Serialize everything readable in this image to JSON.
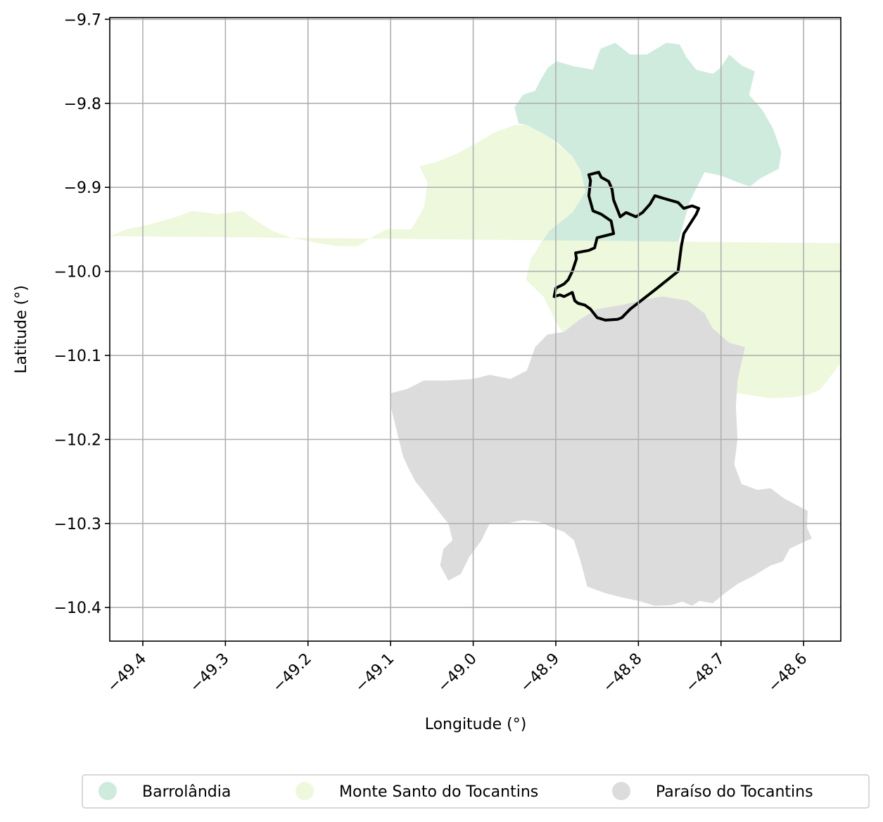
{
  "chart_data": {
    "type": "map",
    "xlabel": "Longitude (°)",
    "ylabel": "Latitude (°)",
    "xlim": [
      -49.44,
      -48.555
    ],
    "ylim": [
      -10.44,
      -9.698
    ],
    "x_ticks": [
      {
        "value": -49.4,
        "label": "−49.4"
      },
      {
        "value": -49.3,
        "label": "−49.3"
      },
      {
        "value": -49.2,
        "label": "−49.2"
      },
      {
        "value": -49.1,
        "label": "−49.1"
      },
      {
        "value": -49.0,
        "label": "−49.0"
      },
      {
        "value": -48.9,
        "label": "−48.9"
      },
      {
        "value": -48.8,
        "label": "−48.8"
      },
      {
        "value": -48.7,
        "label": "−48.7"
      },
      {
        "value": -48.6,
        "label": "−48.6"
      }
    ],
    "y_ticks": [
      {
        "value": -9.7,
        "label": "−9.7"
      },
      {
        "value": -9.8,
        "label": "−9.8"
      },
      {
        "value": -9.9,
        "label": "−9.9"
      },
      {
        "value": -10.0,
        "label": "−10.0"
      },
      {
        "value": -10.1,
        "label": "−10.1"
      },
      {
        "value": -10.2,
        "label": "−10.2"
      },
      {
        "value": -10.3,
        "label": "−10.3"
      },
      {
        "value": -10.4,
        "label": "−10.4"
      }
    ],
    "grid": true,
    "legend_position": "bottom",
    "regions": [
      {
        "name": "Barrolândia",
        "color": "#cfebdd",
        "polygon": [
          [
            -48.936,
            -10.01
          ],
          [
            -48.93,
            -9.985
          ],
          [
            -48.92,
            -9.97
          ],
          [
            -48.914,
            -9.96
          ],
          [
            -48.908,
            -9.952
          ],
          [
            -48.88,
            -9.93
          ],
          [
            -48.864,
            -9.905
          ],
          [
            -48.87,
            -9.88
          ],
          [
            -48.88,
            -9.863
          ],
          [
            -48.898,
            -9.847
          ],
          [
            -48.917,
            -9.835
          ],
          [
            -48.935,
            -9.826
          ],
          [
            -48.945,
            -9.824
          ],
          [
            -48.95,
            -9.805
          ],
          [
            -48.94,
            -9.79
          ],
          [
            -48.925,
            -9.785
          ],
          [
            -48.92,
            -9.775
          ],
          [
            -48.91,
            -9.758
          ],
          [
            -48.899,
            -9.75
          ],
          [
            -48.878,
            -9.756
          ],
          [
            -48.855,
            -9.76
          ],
          [
            -48.846,
            -9.735
          ],
          [
            -48.828,
            -9.728
          ],
          [
            -48.81,
            -9.742
          ],
          [
            -48.79,
            -9.742
          ],
          [
            -48.766,
            -9.728
          ],
          [
            -48.75,
            -9.73
          ],
          [
            -48.742,
            -9.745
          ],
          [
            -48.73,
            -9.76
          ],
          [
            -48.71,
            -9.765
          ],
          [
            -48.7,
            -9.757
          ],
          [
            -48.69,
            -9.742
          ],
          [
            -48.675,
            -9.755
          ],
          [
            -48.659,
            -9.762
          ],
          [
            -48.666,
            -9.79
          ],
          [
            -48.65,
            -9.808
          ],
          [
            -48.637,
            -9.83
          ],
          [
            -48.627,
            -9.858
          ],
          [
            -48.63,
            -9.878
          ],
          [
            -48.652,
            -9.889
          ],
          [
            -48.665,
            -9.899
          ],
          [
            -48.68,
            -9.894
          ],
          [
            -48.7,
            -9.886
          ],
          [
            -48.72,
            -9.882
          ],
          [
            -48.738,
            -9.917
          ],
          [
            -48.751,
            -9.963
          ],
          [
            -48.78,
            -10.023
          ],
          [
            -48.81,
            -10.055
          ],
          [
            -48.827,
            -10.058
          ],
          [
            -48.845,
            -10.055
          ],
          [
            -48.87,
            -10.04
          ],
          [
            -48.893,
            -10.038
          ],
          [
            -48.915,
            -10.028
          ]
        ]
      },
      {
        "name": "Monte Santo do Tocantins",
        "color": "#eef8dc",
        "polygon": [
          [
            -49.44,
            -9.958
          ],
          [
            -49.42,
            -9.95
          ],
          [
            -49.395,
            -9.945
          ],
          [
            -49.365,
            -9.937
          ],
          [
            -49.34,
            -9.928
          ],
          [
            -49.31,
            -9.932
          ],
          [
            -49.28,
            -9.928
          ],
          [
            -49.262,
            -9.94
          ],
          [
            -49.243,
            -9.952
          ],
          [
            -49.22,
            -9.96
          ],
          [
            -49.19,
            -9.966
          ],
          [
            -49.165,
            -9.97
          ],
          [
            -49.14,
            -9.97
          ],
          [
            -49.12,
            -9.958
          ],
          [
            -49.105,
            -9.95
          ],
          [
            -49.075,
            -9.95
          ],
          [
            -49.06,
            -9.925
          ],
          [
            -49.055,
            -9.895
          ],
          [
            -49.065,
            -9.875
          ],
          [
            -49.045,
            -9.87
          ],
          [
            -49.02,
            -9.86
          ],
          [
            -48.995,
            -9.847
          ],
          [
            -48.975,
            -9.835
          ],
          [
            -48.95,
            -9.826
          ],
          [
            -48.935,
            -9.826
          ],
          [
            -48.917,
            -9.835
          ],
          [
            -48.9,
            -9.847
          ],
          [
            -48.88,
            -9.863
          ],
          [
            -48.87,
            -9.88
          ],
          [
            -48.864,
            -9.905
          ],
          [
            -48.88,
            -9.93
          ],
          [
            -48.908,
            -9.952
          ],
          [
            -48.93,
            -9.985
          ],
          [
            -48.936,
            -10.01
          ],
          [
            -48.915,
            -10.03
          ],
          [
            -48.9,
            -10.06
          ],
          [
            -48.89,
            -10.075
          ],
          [
            -48.86,
            -10.1
          ],
          [
            -48.846,
            -10.115
          ],
          [
            -48.83,
            -10.13
          ],
          [
            -48.815,
            -10.128
          ],
          [
            -48.79,
            -10.118
          ],
          [
            -48.77,
            -10.12
          ],
          [
            -48.755,
            -10.128
          ],
          [
            -48.735,
            -10.132
          ],
          [
            -48.72,
            -10.138
          ],
          [
            -48.7,
            -10.14
          ],
          [
            -48.68,
            -10.145
          ],
          [
            -48.66,
            -10.148
          ],
          [
            -48.643,
            -10.151
          ],
          [
            -48.615,
            -10.15
          ],
          [
            -48.595,
            -10.147
          ],
          [
            -48.58,
            -10.141
          ],
          [
            -48.562,
            -10.118
          ],
          [
            -48.548,
            -10.098
          ],
          [
            -48.53,
            -10.085
          ],
          [
            -48.51,
            -10.073
          ],
          [
            -48.495,
            -10.06
          ],
          [
            -48.465,
            -10.045
          ],
          [
            -48.44,
            -10.035
          ],
          [
            -48.43,
            -10.02
          ],
          [
            -48.42,
            -10.0
          ],
          [
            -48.405,
            -9.988
          ],
          [
            -48.39,
            -9.972
          ],
          [
            -48.38,
            -9.968
          ]
        ]
      },
      {
        "name": "Paraíso do Tocantins",
        "color": "#dcdcdc",
        "polygon": [
          [
            -49.1,
            -10.145
          ],
          [
            -49.08,
            -10.14
          ],
          [
            -49.06,
            -10.13
          ],
          [
            -49.035,
            -10.13
          ],
          [
            -49.0,
            -10.128
          ],
          [
            -48.98,
            -10.123
          ],
          [
            -48.955,
            -10.128
          ],
          [
            -48.935,
            -10.118
          ],
          [
            -48.925,
            -10.09
          ],
          [
            -48.91,
            -10.075
          ],
          [
            -48.89,
            -10.072
          ],
          [
            -48.872,
            -10.058
          ],
          [
            -48.85,
            -10.045
          ],
          [
            -48.82,
            -10.04
          ],
          [
            -48.79,
            -10.033
          ],
          [
            -48.77,
            -10.03
          ],
          [
            -48.74,
            -10.035
          ],
          [
            -48.72,
            -10.05
          ],
          [
            -48.71,
            -10.068
          ],
          [
            -48.69,
            -10.085
          ],
          [
            -48.671,
            -10.09
          ],
          [
            -48.68,
            -10.13
          ],
          [
            -48.682,
            -10.16
          ],
          [
            -48.68,
            -10.2
          ],
          [
            -48.684,
            -10.23
          ],
          [
            -48.675,
            -10.253
          ],
          [
            -48.656,
            -10.26
          ],
          [
            -48.64,
            -10.258
          ],
          [
            -48.624,
            -10.27
          ],
          [
            -48.605,
            -10.28
          ],
          [
            -48.595,
            -10.285
          ],
          [
            -48.596,
            -10.305
          ],
          [
            -48.59,
            -10.318
          ],
          [
            -48.6,
            -10.322
          ],
          [
            -48.617,
            -10.33
          ],
          [
            -48.625,
            -10.345
          ],
          [
            -48.64,
            -10.35
          ],
          [
            -48.66,
            -10.362
          ],
          [
            -48.68,
            -10.372
          ],
          [
            -48.698,
            -10.385
          ],
          [
            -48.71,
            -10.395
          ],
          [
            -48.726,
            -10.392
          ],
          [
            -48.735,
            -10.398
          ],
          [
            -48.747,
            -10.393
          ],
          [
            -48.76,
            -10.397
          ],
          [
            -48.78,
            -10.398
          ],
          [
            -48.8,
            -10.392
          ],
          [
            -48.82,
            -10.388
          ],
          [
            -48.84,
            -10.383
          ],
          [
            -48.862,
            -10.375
          ],
          [
            -48.87,
            -10.345
          ],
          [
            -48.878,
            -10.32
          ],
          [
            -48.89,
            -10.31
          ],
          [
            -48.904,
            -10.305
          ],
          [
            -48.92,
            -10.298
          ],
          [
            -48.94,
            -10.296
          ],
          [
            -48.96,
            -10.3
          ],
          [
            -48.98,
            -10.3
          ],
          [
            -48.99,
            -10.32
          ],
          [
            -49.005,
            -10.34
          ],
          [
            -49.015,
            -10.36
          ],
          [
            -49.03,
            -10.368
          ],
          [
            -49.04,
            -10.35
          ],
          [
            -49.036,
            -10.33
          ],
          [
            -49.025,
            -10.32
          ],
          [
            -49.03,
            -10.3
          ],
          [
            -49.04,
            -10.288
          ],
          [
            -49.05,
            -10.275
          ],
          [
            -49.06,
            -10.262
          ],
          [
            -49.07,
            -10.25
          ],
          [
            -49.078,
            -10.235
          ],
          [
            -49.085,
            -10.22
          ],
          [
            -49.09,
            -10.2
          ],
          [
            -49.095,
            -10.18
          ],
          [
            -49.1,
            -10.16
          ]
        ]
      }
    ],
    "highlight_outline": {
      "color": "#000000",
      "polygon": [
        [
          -48.902,
          -10.03
        ],
        [
          -48.9,
          -10.02
        ],
        [
          -48.89,
          -10.015
        ],
        [
          -48.885,
          -10.01
        ],
        [
          -48.88,
          -10.0
        ],
        [
          -48.875,
          -9.985
        ],
        [
          -48.876,
          -9.978
        ],
        [
          -48.86,
          -9.975
        ],
        [
          -48.853,
          -9.972
        ],
        [
          -48.85,
          -9.96
        ],
        [
          -48.83,
          -9.955
        ],
        [
          -48.833,
          -9.94
        ],
        [
          -48.845,
          -9.932
        ],
        [
          -48.855,
          -9.928
        ],
        [
          -48.86,
          -9.91
        ],
        [
          -48.858,
          -9.892
        ],
        [
          -48.86,
          -9.885
        ],
        [
          -48.848,
          -9.882
        ],
        [
          -48.845,
          -9.888
        ],
        [
          -48.836,
          -9.893
        ],
        [
          -48.832,
          -9.902
        ],
        [
          -48.83,
          -9.915
        ],
        [
          -48.822,
          -9.935
        ],
        [
          -48.815,
          -9.93
        ],
        [
          -48.803,
          -9.935
        ],
        [
          -48.795,
          -9.93
        ],
        [
          -48.786,
          -9.92
        ],
        [
          -48.78,
          -9.91
        ],
        [
          -48.77,
          -9.913
        ],
        [
          -48.752,
          -9.918
        ],
        [
          -48.745,
          -9.925
        ],
        [
          -48.735,
          -9.922
        ],
        [
          -48.727,
          -9.925
        ],
        [
          -48.73,
          -9.932
        ],
        [
          -48.745,
          -9.955
        ],
        [
          -48.748,
          -9.97
        ],
        [
          -48.752,
          -10.0
        ],
        [
          -48.78,
          -10.022
        ],
        [
          -48.81,
          -10.045
        ],
        [
          -48.82,
          -10.055
        ],
        [
          -48.825,
          -10.057
        ],
        [
          -48.84,
          -10.058
        ],
        [
          -48.85,
          -10.055
        ],
        [
          -48.858,
          -10.045
        ],
        [
          -48.865,
          -10.04
        ],
        [
          -48.873,
          -10.038
        ],
        [
          -48.877,
          -10.035
        ],
        [
          -48.88,
          -10.025
        ],
        [
          -48.89,
          -10.03
        ],
        [
          -48.895,
          -10.028
        ]
      ]
    }
  }
}
